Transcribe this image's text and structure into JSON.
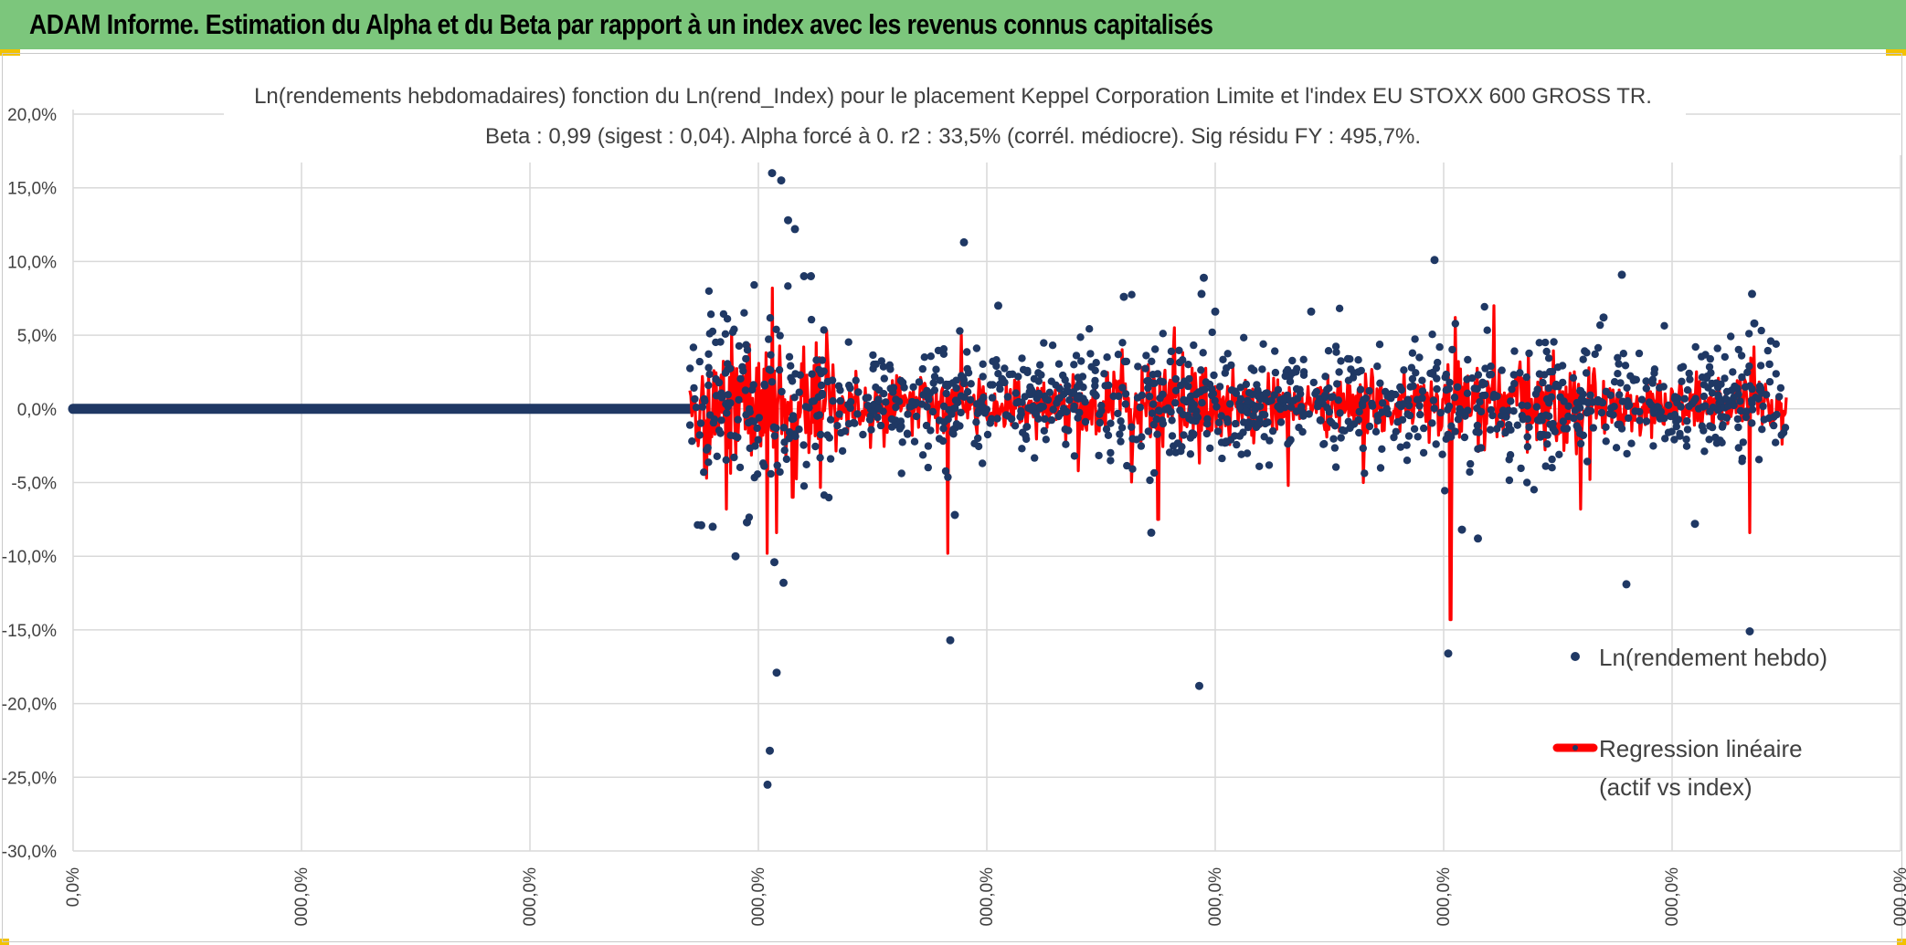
{
  "header": {
    "title": "ADAM Informe. Estimation du Alpha et du Beta par rapport à un index avec les revenus connus capitalisés"
  },
  "colors": {
    "title_bar": "#7cc67c",
    "scatter": "#1f3864",
    "regression": "#ff0000",
    "grid": "#d9d9d9",
    "axis_text": "#404040"
  },
  "chart_data": {
    "type": "scatter",
    "title_line1": "Ln(rendements hebdomadaires) fonction du Ln(rend_Index) pour le placement Keppel Corporation Limite et l'index EU STOXX 600 GROSS TR.",
    "title_line2": "Beta : 0,99 (sigest : 0,04). Alpha forcé à 0. r2 : 33,5% (corrél. médiocre). Sig résidu FY : 495,7%.",
    "ylim": [
      -0.3,
      0.2
    ],
    "y_ticks": [
      0.2,
      0.15,
      0.1,
      0.05,
      0.0,
      -0.05,
      -0.1,
      -0.15,
      -0.2,
      -0.25,
      -0.3
    ],
    "y_tick_labels": [
      "20,0%",
      "15,0%",
      "10,0%",
      "5,0%",
      "0,0%",
      "-5,0%",
      "-10,0%",
      "-15,0%",
      "-20,0%",
      "-25,0%",
      "-30,0%"
    ],
    "x_tick_labels": [
      "0,0%",
      "000,0%",
      "000,0%",
      "000,0%",
      "000,0%",
      "000,0%",
      "000,0%",
      "000,0%",
      "000,0%"
    ],
    "x_tick_count": 9,
    "x_data_start": 2.7,
    "x_data_end": 7.5,
    "legend": [
      {
        "label": "Ln(rendement hebdo)",
        "type": "marker"
      },
      {
        "label_line1": "Regression linéaire",
        "label_line2": "(actif vs index)",
        "type": "line"
      }
    ],
    "notable_points": [
      {
        "x": 3.06,
        "y": 0.16
      },
      {
        "x": 3.1,
        "y": 0.155
      },
      {
        "x": 3.13,
        "y": 0.128
      },
      {
        "x": 3.16,
        "y": 0.122
      },
      {
        "x": 3.2,
        "y": 0.09
      },
      {
        "x": 3.23,
        "y": 0.09
      },
      {
        "x": 3.05,
        "y": -0.232
      },
      {
        "x": 3.04,
        "y": -0.255
      },
      {
        "x": 3.08,
        "y": -0.179
      },
      {
        "x": 3.11,
        "y": -0.118
      },
      {
        "x": 3.07,
        "y": -0.104
      },
      {
        "x": 2.9,
        "y": -0.1
      },
      {
        "x": 2.75,
        "y": -0.079
      },
      {
        "x": 2.8,
        "y": -0.08
      },
      {
        "x": 2.95,
        "y": -0.077
      },
      {
        "x": 3.9,
        "y": 0.113
      },
      {
        "x": 3.84,
        "y": -0.157
      },
      {
        "x": 3.86,
        "y": -0.072
      },
      {
        "x": 4.05,
        "y": 0.07
      },
      {
        "x": 4.95,
        "y": 0.089
      },
      {
        "x": 4.94,
        "y": 0.078
      },
      {
        "x": 4.93,
        "y": -0.188
      },
      {
        "x": 4.72,
        "y": -0.084
      },
      {
        "x": 4.6,
        "y": 0.076
      },
      {
        "x": 5.96,
        "y": 0.101
      },
      {
        "x": 6.02,
        "y": -0.166
      },
      {
        "x": 6.08,
        "y": -0.082
      },
      {
        "x": 6.15,
        "y": -0.088
      },
      {
        "x": 6.78,
        "y": 0.091
      },
      {
        "x": 6.8,
        "y": -0.119
      },
      {
        "x": 6.7,
        "y": 0.062
      },
      {
        "x": 7.1,
        "y": -0.078
      },
      {
        "x": 7.35,
        "y": 0.078
      },
      {
        "x": 7.34,
        "y": -0.151
      },
      {
        "x": 7.36,
        "y": 0.058
      },
      {
        "x": 5.42,
        "y": 0.066
      },
      {
        "x": 5.0,
        "y": 0.066
      }
    ],
    "regression_spikes": [
      {
        "x": 3.06,
        "y": 0.082
      },
      {
        "x": 3.04,
        "y": -0.098
      },
      {
        "x": 3.08,
        "y": -0.084
      },
      {
        "x": 3.83,
        "y": -0.098
      },
      {
        "x": 3.89,
        "y": 0.05
      },
      {
        "x": 4.75,
        "y": -0.075
      },
      {
        "x": 4.82,
        "y": 0.055
      },
      {
        "x": 5.32,
        "y": -0.052
      },
      {
        "x": 6.03,
        "y": -0.143
      },
      {
        "x": 6.05,
        "y": 0.062
      },
      {
        "x": 6.22,
        "y": 0.07
      },
      {
        "x": 6.6,
        "y": -0.068
      },
      {
        "x": 7.34,
        "y": -0.084
      },
      {
        "x": 7.36,
        "y": 0.042
      },
      {
        "x": 3.15,
        "y": -0.06
      },
      {
        "x": 2.86,
        "y": -0.068
      },
      {
        "x": 4.4,
        "y": -0.042
      },
      {
        "x": 5.65,
        "y": -0.05
      }
    ]
  }
}
